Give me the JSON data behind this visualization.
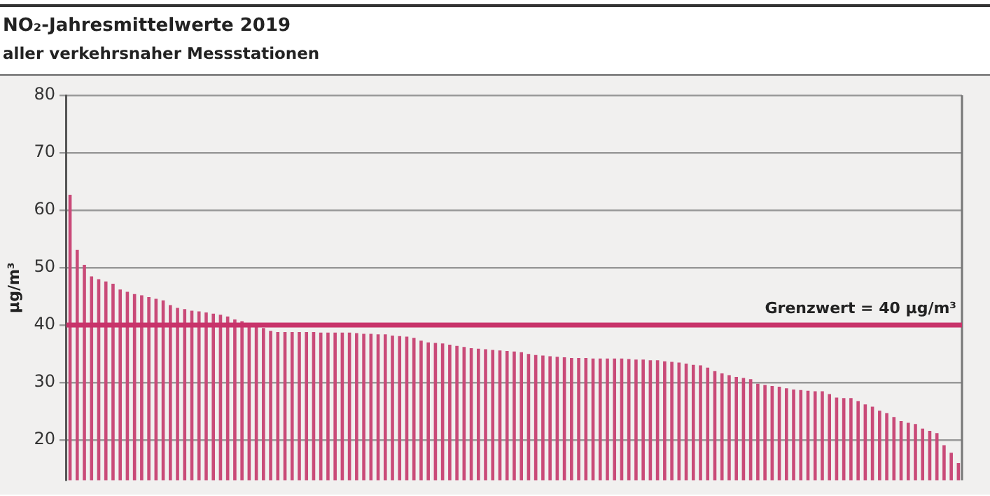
{
  "chart_data": {
    "type": "bar",
    "title": "NO₂-Jahresmittelwerte 2019",
    "subtitle": "aller verkehrsnaher Messstationen",
    "ylabel": "µg/m³",
    "categories": [
      null,
      null,
      null,
      null,
      null,
      null,
      null,
      null,
      null,
      null,
      null,
      null,
      null,
      null,
      null,
      null,
      null,
      null,
      null,
      null,
      null,
      null,
      null,
      null,
      null,
      null,
      null,
      null,
      null,
      null,
      null,
      null,
      null,
      null,
      null,
      null,
      null,
      null,
      null,
      null,
      null,
      null,
      null,
      null,
      null,
      null,
      null,
      null,
      null,
      null,
      null,
      null,
      null,
      null,
      null,
      null,
      null,
      null,
      null,
      null,
      null,
      null,
      null,
      null,
      null,
      null,
      null,
      null,
      null,
      null,
      null,
      null,
      null,
      null,
      null,
      null,
      null,
      null,
      null,
      null,
      null,
      null,
      null,
      null,
      null,
      null,
      null,
      null,
      null,
      null,
      null,
      null,
      null,
      null,
      null,
      null,
      null,
      null,
      null,
      null,
      null,
      null,
      null,
      null,
      null,
      null,
      null,
      null,
      null,
      null,
      null,
      null,
      null,
      null,
      null,
      null,
      null,
      null,
      null,
      null,
      null,
      null,
      null,
      null,
      null
    ],
    "values": [
      62.7,
      53.1,
      50.5,
      48.5,
      48.0,
      47.6,
      47.2,
      46.2,
      45.8,
      45.4,
      45.2,
      44.9,
      44.6,
      44.3,
      43.5,
      43.0,
      42.8,
      42.5,
      42.4,
      42.2,
      42.0,
      41.8,
      41.5,
      41.0,
      40.7,
      40.3,
      39.9,
      39.5,
      39.0,
      38.8,
      38.8,
      38.8,
      38.8,
      38.8,
      38.8,
      38.7,
      38.7,
      38.7,
      38.7,
      38.7,
      38.6,
      38.5,
      38.5,
      38.4,
      38.4,
      38.2,
      38.1,
      38.0,
      37.8,
      37.3,
      37.0,
      36.9,
      36.8,
      36.6,
      36.4,
      36.2,
      36.0,
      35.9,
      35.8,
      35.7,
      35.6,
      35.5,
      35.4,
      35.3,
      35.0,
      34.8,
      34.7,
      34.6,
      34.5,
      34.4,
      34.3,
      34.3,
      34.3,
      34.2,
      34.2,
      34.2,
      34.2,
      34.2,
      34.1,
      34.0,
      34.0,
      33.9,
      33.9,
      33.7,
      33.6,
      33.5,
      33.3,
      33.1,
      33.0,
      32.6,
      32.0,
      31.6,
      31.3,
      31.0,
      30.8,
      30.6,
      29.8,
      29.6,
      29.4,
      29.3,
      29.0,
      28.8,
      28.7,
      28.6,
      28.5,
      28.5,
      28.0,
      27.4,
      27.3,
      27.3,
      26.8,
      26.2,
      25.8,
      25.1,
      24.7,
      24.0,
      23.3,
      23.0,
      22.8,
      22.0,
      21.6,
      21.2,
      19.1,
      17.8,
      16.0
    ],
    "color": "#c94a78",
    "ylim": [
      13,
      80
    ],
    "yticks": [
      20,
      30,
      40,
      50,
      60,
      70,
      80
    ],
    "grid": "y",
    "tick_labels": "y",
    "ref_lines": [
      {
        "axis": "y",
        "value": 40,
        "label": "Grenzwert = 40 µg/m³",
        "color": "#c8336a"
      }
    ]
  }
}
